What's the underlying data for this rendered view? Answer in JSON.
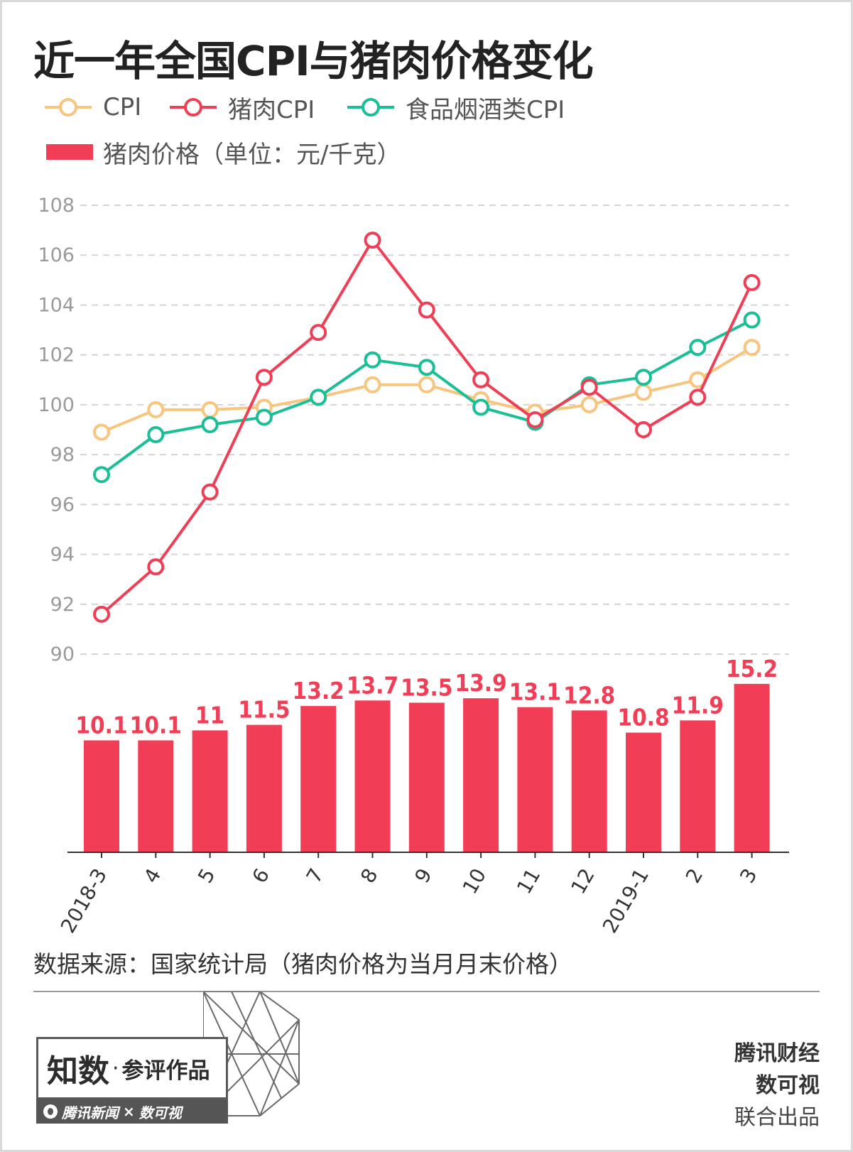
{
  "title": "近一年全国CPI与猪肉价格变化",
  "legend": {
    "cpi": "CPI",
    "pork_cpi": "猪肉CPI",
    "food_cpi": "食品烟酒类CPI",
    "pork_price": "猪肉价格（单位：元/千克）"
  },
  "colors": {
    "cpi": "#f8c57f",
    "pork_cpi": "#ef3f57",
    "food_cpi": "#1bbf96",
    "bar": "#f13d56",
    "grid": "#d4d4d4"
  },
  "chart_data": [
    {
      "type": "line",
      "categories": [
        "2018-3",
        "4",
        "5",
        "6",
        "7",
        "8",
        "9",
        "10",
        "11",
        "12",
        "2019-1",
        "2",
        "3"
      ],
      "series": [
        {
          "name": "CPI",
          "values": [
            98.9,
            99.8,
            99.8,
            99.9,
            100.3,
            100.8,
            100.8,
            100.2,
            99.7,
            100.0,
            100.5,
            101.0,
            102.3
          ]
        },
        {
          "name": "猪肉CPI",
          "values": [
            91.6,
            93.5,
            96.5,
            101.1,
            102.9,
            106.6,
            103.8,
            101.0,
            99.4,
            100.7,
            99.0,
            100.3,
            104.9
          ]
        },
        {
          "name": "食品烟酒类CPI",
          "values": [
            97.2,
            98.8,
            99.2,
            99.5,
            100.3,
            101.8,
            101.5,
            99.9,
            99.3,
            100.8,
            101.1,
            102.3,
            103.4
          ]
        }
      ],
      "ylim": [
        90,
        108
      ],
      "yticks": [
        90,
        92,
        94,
        96,
        98,
        100,
        102,
        104,
        106,
        108
      ],
      "grid": true,
      "legend_position": "top-left"
    },
    {
      "type": "bar",
      "name": "猪肉价格（单位：元/千克）",
      "categories": [
        "2018-3",
        "4",
        "5",
        "6",
        "7",
        "8",
        "9",
        "10",
        "11",
        "12",
        "2019-1",
        "2",
        "3"
      ],
      "values": [
        10.1,
        10.1,
        11,
        11.5,
        13.2,
        13.7,
        13.5,
        13.9,
        13.1,
        12.8,
        10.8,
        11.9,
        15.2
      ],
      "value_labels": [
        "10.1",
        "10.1",
        "11",
        "11.5",
        "13.2",
        "13.7",
        "13.5",
        "13.9",
        "13.1",
        "12.8",
        "10.8",
        "11.9",
        "15.2"
      ]
    }
  ],
  "source": "数据来源：国家统计局（猪肉价格为当月月末价格）",
  "badge": {
    "main": "知数",
    "separator": "·",
    "sub": "参评作品",
    "strip_left": "腾讯新闻",
    "strip_x": "×",
    "strip_right": "数可视"
  },
  "credits": [
    "腾讯财经",
    "数可视",
    "联合出品"
  ]
}
